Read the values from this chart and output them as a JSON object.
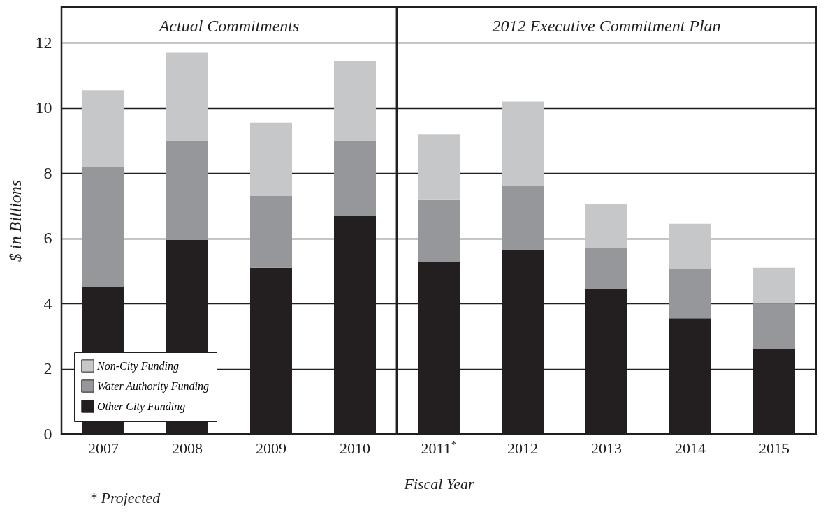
{
  "chart_data": [
    {
      "type": "bar",
      "title": "Actual Commitments",
      "xlabel": "Fiscal Year",
      "ylabel": "$ in Billions",
      "categories": [
        "2007",
        "2008",
        "2009",
        "2010"
      ],
      "stacked": true,
      "series": [
        {
          "name": "Other City Funding",
          "color": "#231f20",
          "values": [
            4.5,
            5.95,
            5.1,
            6.7
          ]
        },
        {
          "name": "Water Authority Funding",
          "color": "#96979a",
          "values": [
            3.7,
            3.05,
            2.2,
            2.3
          ]
        },
        {
          "name": "Non-City Funding",
          "color": "#c6c7c9",
          "values": [
            2.35,
            2.7,
            2.25,
            2.45
          ]
        }
      ],
      "ylim": [
        0,
        13.1
      ],
      "yticks": [
        0,
        2,
        4,
        6,
        8,
        10,
        12
      ],
      "grid": "y",
      "legend": "bottom left",
      "annotations": [
        "* Projected"
      ]
    },
    {
      "type": "bar",
      "title": "2012 Executive Commitment Plan",
      "categories": [
        "2011$^{*}$",
        "2012",
        "2013",
        "2014",
        "2015"
      ],
      "stacked": true,
      "series": [
        {
          "color": "#231f20",
          "values": [
            5.3,
            5.65,
            4.45,
            3.55,
            2.6
          ]
        },
        {
          "color": "#96979a",
          "values": [
            1.9,
            1.95,
            1.25,
            1.5,
            1.4
          ]
        },
        {
          "color": "#c6c7c9",
          "values": [
            2.0,
            2.6,
            1.35,
            1.4,
            1.1
          ]
        }
      ],
      "ylim": [
        0,
        13.1
      ],
      "yticks": [
        0,
        2,
        4,
        6,
        8,
        10,
        12
      ],
      "grid": "y",
      "tick_labels": "x"
    }
  ]
}
